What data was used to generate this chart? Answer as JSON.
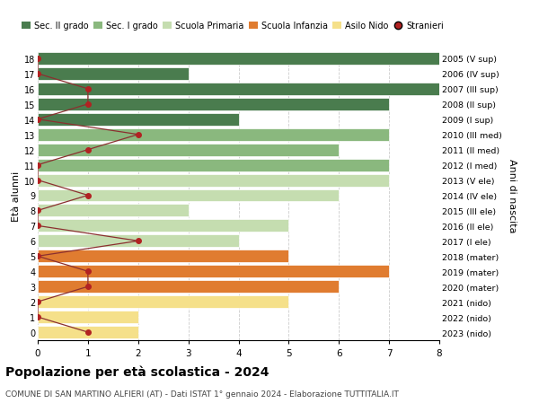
{
  "ages": [
    18,
    17,
    16,
    15,
    14,
    13,
    12,
    11,
    10,
    9,
    8,
    7,
    6,
    5,
    4,
    3,
    2,
    1,
    0
  ],
  "right_labels": [
    "2005 (V sup)",
    "2006 (IV sup)",
    "2007 (III sup)",
    "2008 (II sup)",
    "2009 (I sup)",
    "2010 (III med)",
    "2011 (II med)",
    "2012 (I med)",
    "2013 (V ele)",
    "2014 (IV ele)",
    "2015 (III ele)",
    "2016 (II ele)",
    "2017 (I ele)",
    "2018 (mater)",
    "2019 (mater)",
    "2020 (mater)",
    "2021 (nido)",
    "2022 (nido)",
    "2023 (nido)"
  ],
  "bar_values": [
    8,
    3,
    8,
    7,
    4,
    7,
    6,
    7,
    7,
    6,
    3,
    5,
    4,
    5,
    7,
    6,
    5,
    2,
    2
  ],
  "bar_colors": [
    "#4a7c4e",
    "#4a7c4e",
    "#4a7c4e",
    "#4a7c4e",
    "#4a7c4e",
    "#8ab87e",
    "#8ab87e",
    "#8ab87e",
    "#c5ddb0",
    "#c5ddb0",
    "#c5ddb0",
    "#c5ddb0",
    "#c5ddb0",
    "#e07c30",
    "#e07c30",
    "#e07c30",
    "#f5e08a",
    "#f5e08a",
    "#f5e08a"
  ],
  "stranieri_values": [
    0,
    0,
    1,
    1,
    0,
    2,
    1,
    0,
    0,
    1,
    0,
    0,
    2,
    0,
    1,
    1,
    0,
    0,
    1
  ],
  "title": "Popolazione per età scolastica - 2024",
  "subtitle": "COMUNE DI SAN MARTINO ALFIERI (AT) - Dati ISTAT 1° gennaio 2024 - Elaborazione TUTTITALIA.IT",
  "ylabel_left": "Età alunni",
  "ylabel_right": "Anni di nascita",
  "xlim": [
    0,
    8
  ],
  "xticks": [
    0,
    1,
    2,
    3,
    4,
    5,
    6,
    7,
    8
  ],
  "legend_labels": [
    "Sec. II grado",
    "Sec. I grado",
    "Scuola Primaria",
    "Scuola Infanzia",
    "Asilo Nido",
    "Stranieri"
  ],
  "legend_colors": [
    "#4a7c4e",
    "#8ab87e",
    "#c5ddb0",
    "#e07c30",
    "#f5e08a",
    "#b22222"
  ],
  "bg_color": "#ffffff",
  "grid_color": "#cccccc",
  "stranieri_color": "#b22222",
  "stranieri_line_color": "#8b3030",
  "bar_height": 0.82
}
